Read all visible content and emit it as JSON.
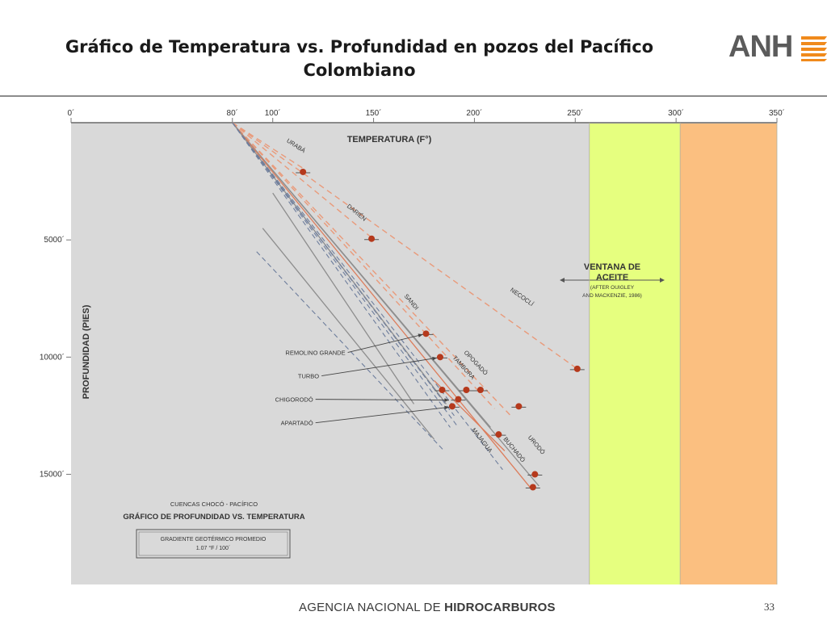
{
  "slide": {
    "title_line1": "Gráfico  de Temperatura vs. Profundidad en pozos del Pacífico",
    "title_line2": "Colombiano",
    "logo_text": "ANH",
    "footer_regular": "AGENCIA NACIONAL DE ",
    "footer_bold": "HIDROCARBUROS",
    "page_number": "33"
  },
  "colors": {
    "plot_bg": "#d9d9d9",
    "oil_window": "#e6ff7f",
    "gas_zone": "#fbbf80",
    "well_point": "#b5391c",
    "dashed_orange": "#e99a7a",
    "solid_gray": "#8e8e8e",
    "dashed_blue": "#6d7d9c",
    "logo_orange": "#f08a1c"
  },
  "chart_data": {
    "type": "line",
    "title": "GRÁFICO DE PROFUNDIDAD VS. TEMPERATURA",
    "subtitle": "CUENCAS CHOCÓ - PACÍFICO",
    "xlabel": "TEMPERATURA (F°)",
    "ylabel": "PROFUNDIDAD (PIES)",
    "xlim": [
      0,
      350
    ],
    "ylim": [
      0,
      19700
    ],
    "x_ticks": [
      {
        "value": 0,
        "label": "0´"
      },
      {
        "value": 80,
        "label": "80´"
      },
      {
        "value": 100,
        "label": "100´"
      },
      {
        "value": 150,
        "label": "150´"
      },
      {
        "value": 200,
        "label": "200´"
      },
      {
        "value": 250,
        "label": "250´"
      },
      {
        "value": 300,
        "label": "300´"
      },
      {
        "value": 350,
        "label": "350´"
      }
    ],
    "y_ticks": [
      {
        "value": 5000,
        "label": "5000´"
      },
      {
        "value": 10000,
        "label": "10000´"
      },
      {
        "value": 15000,
        "label": "15000´"
      }
    ],
    "origin": {
      "x": 80,
      "y": 0
    },
    "zones": [
      {
        "label_line1": "VENTANA DE",
        "label_line2": "ACEITE",
        "note_line1": "(AFTER OUIGLEY",
        "note_line2": "AND MACKENZIE, 1986)",
        "x_range": [
          257,
          302
        ],
        "color": "#e6ff7f"
      },
      {
        "x_range": [
          302,
          350
        ],
        "color": "#fbbf80"
      }
    ],
    "gradient_box": {
      "line1": "GRADIENTE GEOTÉRMICO PROMEDIO",
      "line2": "1.07 °F / 100´"
    },
    "series": [
      {
        "name": "URABÁ",
        "style": "dashed_orange",
        "end": [
          116,
          2000
        ],
        "label_at": [
          111,
          1050
        ]
      },
      {
        "name": "DARIÉN",
        "style": "dashed_orange",
        "end": [
          149,
          4900
        ],
        "label_at": [
          141,
          3900
        ]
      },
      {
        "name": "NECOCLÍ",
        "style": "dashed_orange",
        "end": [
          251,
          10500
        ],
        "label_at": [
          223,
          7500
        ]
      },
      {
        "name": "SANDI",
        "style": "solid_gray",
        "end": [
          208,
          13000
        ],
        "label_at": [
          168,
          7700
        ]
      },
      {
        "name": "OPOGADÓ",
        "style": "dashed_orange",
        "end": [
          218,
          12500
        ],
        "label_at": [
          200,
          10300
        ]
      },
      {
        "name": "TAMBORA",
        "style": "dashed_orange",
        "end": [
          210,
          12200
        ],
        "label_at": [
          194,
          10500
        ]
      },
      {
        "name": "URODÓ",
        "style": "solid_gray",
        "end": [
          232,
          15500
        ],
        "label_at": [
          230,
          13800
        ]
      },
      {
        "name": "BUCHADÓ",
        "style": "solid_orange",
        "end": [
          228,
          15600
        ],
        "label_at": [
          219,
          14000
        ]
      },
      {
        "name": "MAJAGUA",
        "style": "dashed_blue",
        "end": [
          214,
          14800
        ],
        "label_at": [
          203,
          13600
        ]
      },
      {
        "name": "REMOLINO GRANDE",
        "style": "dashed_blue",
        "end": [
          192,
          13000
        ],
        "label_at": [
          136,
          9800
        ]
      },
      {
        "name": "TURBO",
        "style": "solid_gray",
        "end": [
          186,
          12000
        ],
        "label_at": [
          123,
          10800
        ]
      },
      {
        "name": "CHIGORODÓ",
        "style": "dashed_blue",
        "end": [
          190,
          12500
        ],
        "label_at": [
          120,
          11800
        ]
      },
      {
        "name": "APARTADÓ",
        "style": "dashed_blue",
        "end": [
          188,
          13000
        ],
        "label_at": [
          120,
          12800
        ]
      }
    ],
    "extra_lines": [
      {
        "style": "solid_gray",
        "start": [
          100,
          3000
        ],
        "end": [
          170,
          12000
        ]
      },
      {
        "style": "solid_gray",
        "start": [
          95,
          4500
        ],
        "end": [
          180,
          13500
        ]
      },
      {
        "style": "dashed_blue",
        "start": [
          92,
          5500
        ],
        "end": [
          185,
          14000
        ]
      },
      {
        "style": "solid_orange",
        "start": [
          180,
          11000
        ],
        "end": [
          215,
          14000
        ]
      }
    ],
    "points": [
      {
        "x": 115,
        "y": 2100
      },
      {
        "x": 149,
        "y": 4950
      },
      {
        "x": 176,
        "y": 9000
      },
      {
        "x": 183,
        "y": 10000
      },
      {
        "x": 184,
        "y": 11400
      },
      {
        "x": 196,
        "y": 11400
      },
      {
        "x": 192,
        "y": 11800
      },
      {
        "x": 189,
        "y": 12100
      },
      {
        "x": 203,
        "y": 11400
      },
      {
        "x": 222,
        "y": 12100
      },
      {
        "x": 251,
        "y": 10500
      },
      {
        "x": 212,
        "y": 13300
      },
      {
        "x": 230,
        "y": 15000
      },
      {
        "x": 229,
        "y": 15550
      }
    ],
    "annotations": [
      {
        "text": "REMOLINO GRANDE",
        "target": [
          176,
          9000
        ]
      },
      {
        "text": "TURBO",
        "target": [
          183,
          10000
        ]
      },
      {
        "text": "CHIGORODÓ",
        "target": [
          189,
          11800
        ]
      },
      {
        "text": "APARTADÓ",
        "target": [
          189,
          12100
        ]
      }
    ]
  }
}
